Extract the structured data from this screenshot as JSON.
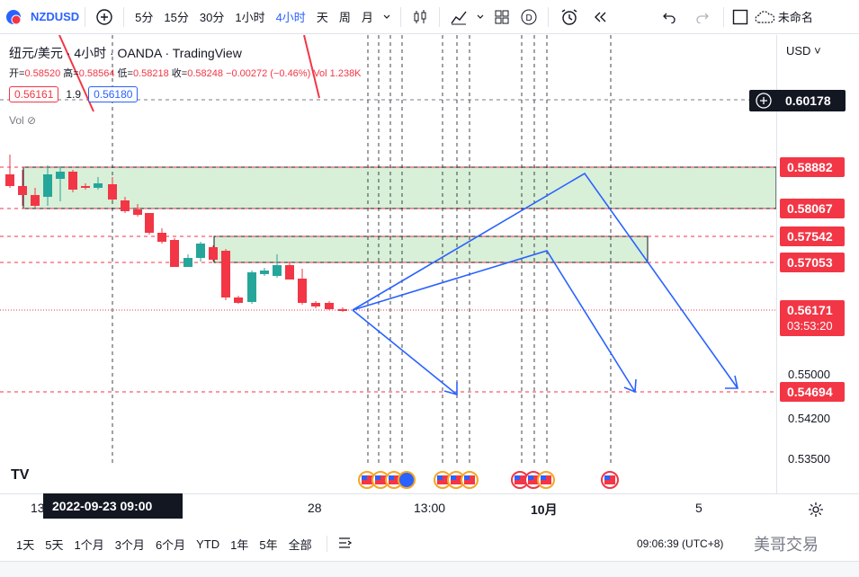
{
  "toolbar": {
    "symbol": "NZDUSD",
    "timeframes": [
      "5分",
      "15分",
      "30分",
      "1小时",
      "4小时",
      "天",
      "周",
      "月"
    ],
    "active_timeframe": "4小时",
    "account_label": "未命名"
  },
  "legend": {
    "title": "纽元/美元 · 4小时 · OANDA · TradingView",
    "open_label": "开=",
    "open": "0.58520",
    "high_label": "高=",
    "high": "0.58564",
    "low_label": "低=",
    "low": "0.58218",
    "close_label": "收=",
    "close": "0.58248",
    "change": "−0.00272 (−0.46%)",
    "vol": "Vol 1.238K",
    "bid": "0.56161",
    "spread": "1.9",
    "ask": "0.56180",
    "vol_indicator": "Vol"
  },
  "price_axis": {
    "currency": "USD",
    "crosshair": "0.60178",
    "labels": [
      "0.58882",
      "0.58067",
      "0.57542",
      "0.57053"
    ],
    "current": "0.56171",
    "countdown": "03:53:20",
    "target": "0.54694",
    "ticks": [
      "0.55000",
      "0.54200",
      "0.53500"
    ]
  },
  "time_axis": {
    "crosshair": "2022-09-23   09:00",
    "ticks": [
      "13",
      "28",
      "13:00",
      "10月",
      "5"
    ]
  },
  "bottom": {
    "ranges": [
      "1天",
      "5天",
      "1个月",
      "3个月",
      "6个月",
      "YTD",
      "1年",
      "5年",
      "全部"
    ],
    "clock": "09:06:39 (UTC+8)",
    "watermark": "美哥交易"
  },
  "colors": {
    "up": "#26a69a",
    "down": "#f23645",
    "accent": "#2962ff",
    "zone": "#d8efd8"
  }
}
